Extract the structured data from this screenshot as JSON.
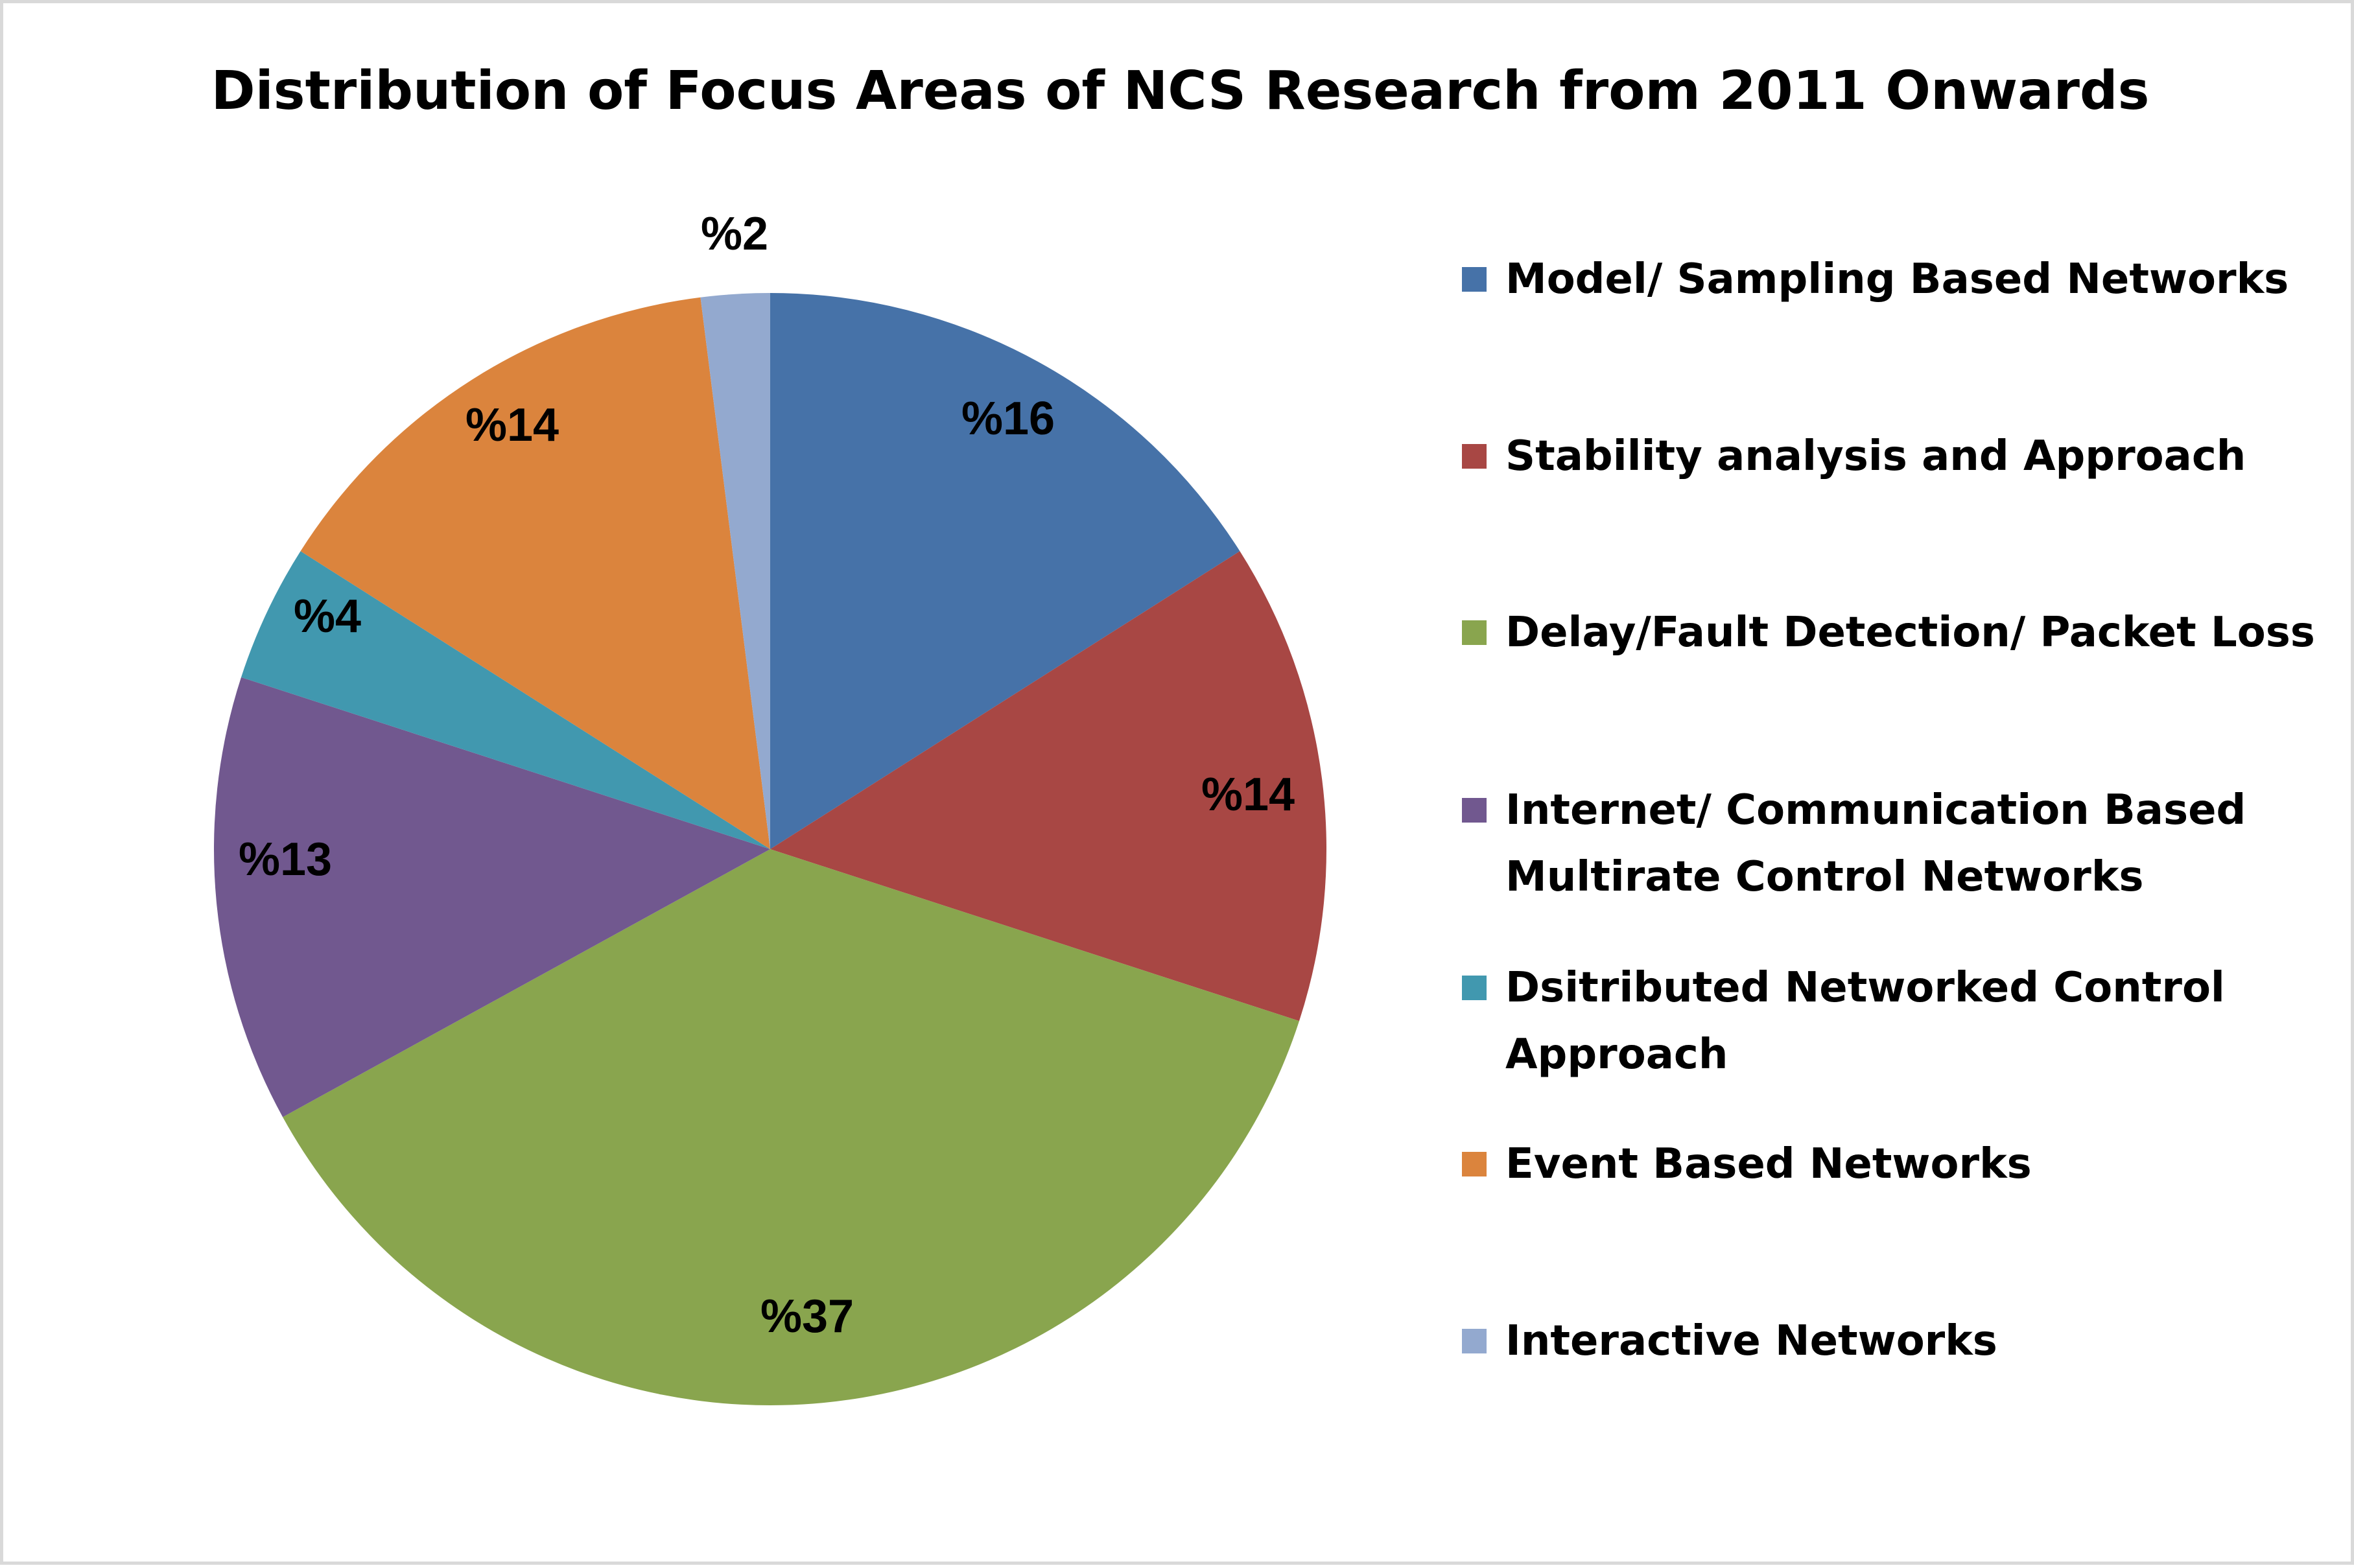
{
  "chart_data": {
    "type": "pie",
    "title": "Distribution of Focus Areas of NCS Research from 2011 Onwards",
    "slices": [
      {
        "name": "Model/ Sampling Based Networks",
        "value": 16,
        "label": "%16",
        "color": "#4672A8"
      },
      {
        "name": "Stability analysis and Approach",
        "value": 14,
        "label": "%14",
        "color": "#A84744"
      },
      {
        "name": "Delay/Fault Detection/ Packet Loss",
        "value": 37,
        "label": "%37",
        "color": "#89A54E"
      },
      {
        "name": "Internet/ Communication Based\nMultirate Control Networks",
        "value": 13,
        "label": "%13",
        "color": "#71588F"
      },
      {
        "name": "Dsitributed Networked Control\nApproach",
        "value": 4,
        "label": "%4",
        "color": "#4198AF"
      },
      {
        "name": "Event Based Networks",
        "value": 14,
        "label": "%14",
        "color": "#DB843D"
      },
      {
        "name": "Interactive Networks",
        "value": 2,
        "label": "%2",
        "color": "#93A9CF"
      }
    ],
    "legend": "right"
  }
}
